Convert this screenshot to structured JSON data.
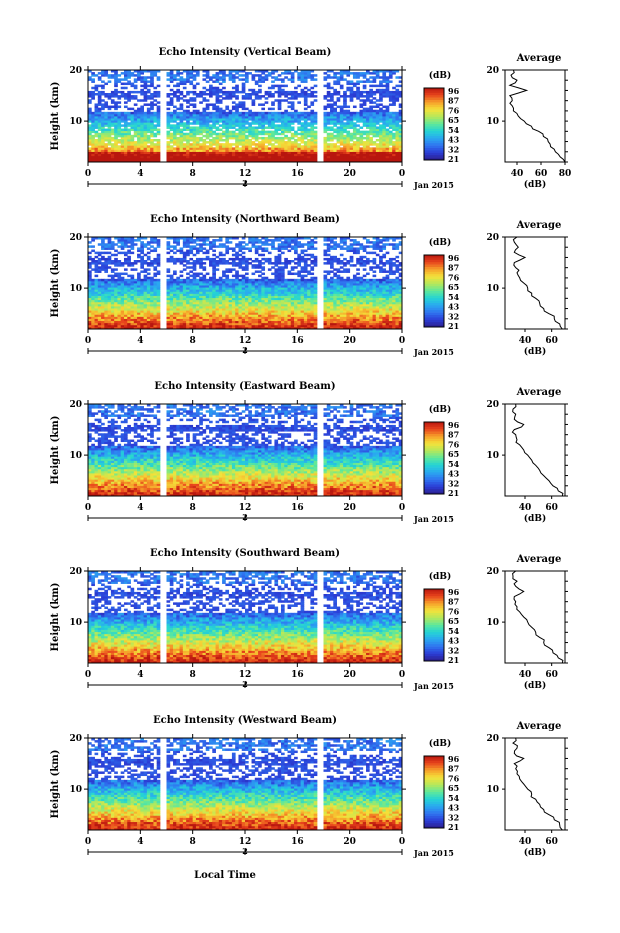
{
  "figure": {
    "bottom_label": "Local Time",
    "date_label": "Jan 2015",
    "unit_label": "(dB)",
    "average_title": "Average",
    "average_xlabel": "(dB)",
    "y_axis_label": "Height (km)",
    "colorbar_ticks": [
      "96",
      "87",
      "76",
      "65",
      "54",
      "43",
      "32",
      "21"
    ],
    "colormap": [
      "#2a1d8c",
      "#2b3dd6",
      "#2f74f0",
      "#2aa9f0",
      "#24d4d4",
      "#5fe89a",
      "#b6e85a",
      "#f4e23a",
      "#f6a12a",
      "#e8431c",
      "#b8160f"
    ]
  },
  "chart_data": [
    {
      "type": "heatmap",
      "title": "Echo Intensity (Vertical Beam)",
      "x_ticks": [
        "0",
        "4",
        "8",
        "12",
        "16",
        "20",
        "0"
      ],
      "y_ticks": [
        "20",
        "10"
      ],
      "date_tick": "2",
      "x_range": [
        0,
        24
      ],
      "y_range": [
        2,
        20
      ],
      "data_gaps_hours": [
        [
          5.4,
          6.0
        ],
        [
          17.5,
          18.1
        ]
      ],
      "profile": {
        "x_ticks": [
          "40",
          "60",
          "80"
        ],
        "x_range": [
          30,
          80
        ],
        "height_km": [
          2,
          3,
          4,
          5,
          6,
          7,
          8,
          9,
          10,
          11,
          12,
          13,
          14,
          15,
          16,
          17,
          18,
          19,
          20
        ],
        "intensity_db": [
          80,
          76,
          72,
          68,
          66,
          62,
          58,
          52,
          46,
          41,
          37,
          36,
          36,
          34,
          48,
          34,
          40,
          35,
          37
        ]
      }
    },
    {
      "type": "heatmap",
      "title": "Echo Intensity (Northward Beam)",
      "x_ticks": [
        "0",
        "4",
        "8",
        "12",
        "16",
        "20",
        "0"
      ],
      "y_ticks": [
        "20",
        "10"
      ],
      "date_tick": "2",
      "x_range": [
        0,
        24
      ],
      "y_range": [
        2,
        20
      ],
      "data_gaps_hours": [
        [
          5.4,
          6.0
        ],
        [
          17.5,
          18.1
        ]
      ],
      "profile": {
        "x_ticks": [
          "40",
          "60"
        ],
        "x_range": [
          25,
          70
        ],
        "height_km": [
          2,
          3,
          4,
          5,
          6,
          7,
          8,
          9,
          10,
          11,
          12,
          13,
          14,
          15,
          16,
          17,
          18,
          19,
          20
        ],
        "intensity_db": [
          68,
          66,
          62,
          58,
          54,
          51,
          48,
          45,
          42,
          39,
          36,
          34,
          33,
          32,
          40,
          32,
          35,
          32,
          34
        ]
      }
    },
    {
      "type": "heatmap",
      "title": "Echo Intensity (Eastward Beam)",
      "x_ticks": [
        "0",
        "4",
        "8",
        "12",
        "16",
        "20",
        "0"
      ],
      "y_ticks": [
        "20",
        "10"
      ],
      "date_tick": "2",
      "x_range": [
        0,
        24
      ],
      "y_range": [
        2,
        20
      ],
      "data_gaps_hours": [
        [
          5.4,
          6.0
        ],
        [
          17.5,
          18.1
        ]
      ],
      "profile": {
        "x_ticks": [
          "40",
          "60"
        ],
        "x_range": [
          25,
          70
        ],
        "height_km": [
          2,
          3,
          4,
          5,
          6,
          7,
          8,
          9,
          10,
          11,
          12,
          13,
          14,
          15,
          16,
          17,
          18,
          19,
          20
        ],
        "intensity_db": [
          68,
          65,
          61,
          58,
          54,
          51,
          48,
          45,
          42,
          39,
          36,
          34,
          33,
          32,
          39,
          32,
          33,
          31,
          33
        ]
      }
    },
    {
      "type": "heatmap",
      "title": "Echo Intensity (Southward Beam)",
      "x_ticks": [
        "0",
        "4",
        "8",
        "12",
        "16",
        "20",
        "0"
      ],
      "y_ticks": [
        "20",
        "10"
      ],
      "date_tick": "2",
      "x_range": [
        0,
        24
      ],
      "y_range": [
        2,
        20
      ],
      "data_gaps_hours": [
        [
          5.4,
          6.0
        ],
        [
          17.5,
          18.1
        ]
      ],
      "profile": {
        "x_ticks": [
          "40",
          "60"
        ],
        "x_range": [
          25,
          70
        ],
        "height_km": [
          2,
          3,
          4,
          5,
          6,
          7,
          8,
          9,
          10,
          11,
          12,
          13,
          14,
          15,
          16,
          17,
          18,
          19,
          20
        ],
        "intensity_db": [
          68,
          65,
          61,
          58,
          54,
          51,
          48,
          45,
          42,
          39,
          36,
          34,
          33,
          32,
          39,
          33,
          34,
          31,
          33
        ]
      }
    },
    {
      "type": "heatmap",
      "title": "Echo Intensity (Westward Beam)",
      "x_ticks": [
        "0",
        "4",
        "8",
        "12",
        "16",
        "20",
        "0"
      ],
      "y_ticks": [
        "20",
        "10"
      ],
      "date_tick": "2",
      "x_range": [
        0,
        24
      ],
      "y_range": [
        2,
        20
      ],
      "data_gaps_hours": [
        [
          5.4,
          6.0
        ],
        [
          17.5,
          18.1
        ]
      ],
      "profile": {
        "x_ticks": [
          "40",
          "60"
        ],
        "x_range": [
          25,
          70
        ],
        "height_km": [
          2,
          3,
          4,
          5,
          6,
          7,
          8,
          9,
          10,
          11,
          12,
          13,
          14,
          15,
          16,
          17,
          18,
          19,
          20
        ],
        "intensity_db": [
          68,
          66,
          62,
          58,
          54,
          51,
          48,
          45,
          42,
          39,
          36,
          34,
          33,
          32,
          39,
          32,
          34,
          31,
          33
        ]
      }
    }
  ]
}
